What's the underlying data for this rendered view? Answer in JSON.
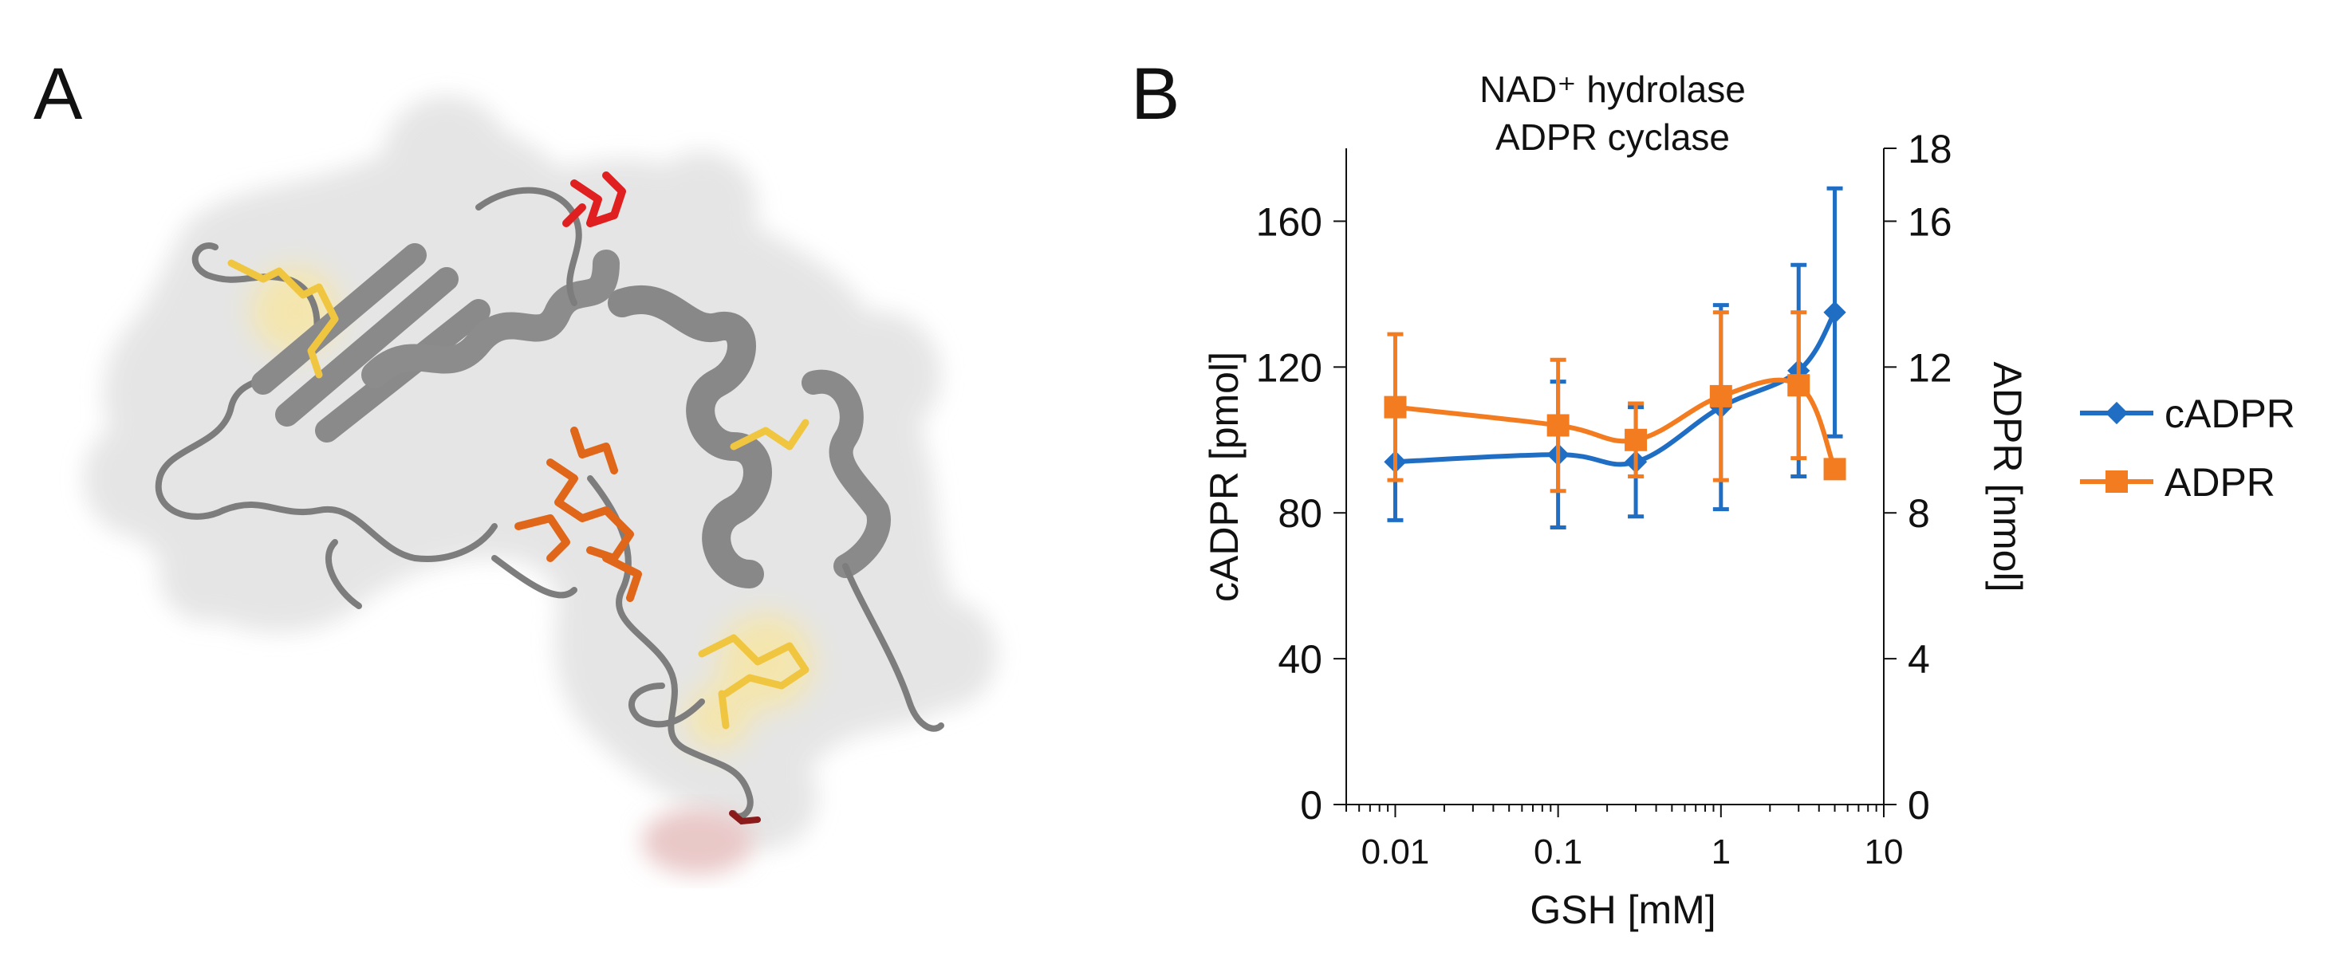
{
  "panels": {
    "a_label": "A",
    "b_label": "B"
  },
  "colors": {
    "cadpr": "#1f6ec4",
    "adpr": "#f47c20",
    "ribbon": "#7d7d7d",
    "surface": "#e3e3e3",
    "disulfide": "#f0c640",
    "ligand": "#e0661a",
    "highlight_red": "#e02020"
  },
  "chart_data": {
    "type": "line",
    "title_line1": "NAD⁺ hydrolase",
    "title_line2": "ADPR cyclase",
    "xlabel": "GSH [mM]",
    "ylabel_left": "cADPR [pmol]",
    "ylabel_right": "ADPR [nmol]",
    "x_scale": "log",
    "xlim": [
      0.005,
      10
    ],
    "ylim_left": [
      0,
      180
    ],
    "ylim_right": [
      0,
      18
    ],
    "x_ticks": [
      {
        "value": 0.01,
        "label": "0.01"
      },
      {
        "value": 0.1,
        "label": "0.1"
      },
      {
        "value": 1,
        "label": "1"
      },
      {
        "value": 10,
        "label": "10"
      }
    ],
    "y_left_ticks": [
      {
        "value": 0,
        "label": "0"
      },
      {
        "value": 40,
        "label": "40"
      },
      {
        "value": 80,
        "label": "80"
      },
      {
        "value": 120,
        "label": "120"
      },
      {
        "value": 160,
        "label": "160"
      }
    ],
    "y_right_ticks": [
      {
        "value": 0,
        "label": "0"
      },
      {
        "value": 4,
        "label": "4"
      },
      {
        "value": 8,
        "label": "8"
      },
      {
        "value": 12,
        "label": "12"
      },
      {
        "value": 16,
        "label": "16"
      },
      {
        "value": 18,
        "label": "18"
      }
    ],
    "series": [
      {
        "name": "cADPR",
        "axis": "left",
        "marker": "diamond",
        "points": [
          {
            "x": 0.01,
            "y": 94,
            "err": 16
          },
          {
            "x": 0.1,
            "y": 96,
            "err": 20
          },
          {
            "x": 0.3,
            "y": 94,
            "err": 15
          },
          {
            "x": 1,
            "y": 109,
            "err": 28
          },
          {
            "x": 3,
            "y": 119,
            "err": 29
          },
          {
            "x": 5,
            "y": 135,
            "err": 34
          }
        ]
      },
      {
        "name": "ADPR",
        "axis": "right",
        "marker": "square",
        "points": [
          {
            "x": 0.01,
            "y": 10.9,
            "err": 2.0
          },
          {
            "x": 0.1,
            "y": 10.4,
            "err": 1.8
          },
          {
            "x": 0.3,
            "y": 10.0,
            "err": 1.0
          },
          {
            "x": 1,
            "y": 11.2,
            "err": 2.3
          },
          {
            "x": 3,
            "y": 11.5,
            "err": 2.0
          },
          {
            "x": 5,
            "y": 9.2,
            "err": 0
          }
        ]
      }
    ],
    "legend": {
      "position": "right",
      "entries": [
        "cADPR",
        "ADPR"
      ]
    }
  }
}
